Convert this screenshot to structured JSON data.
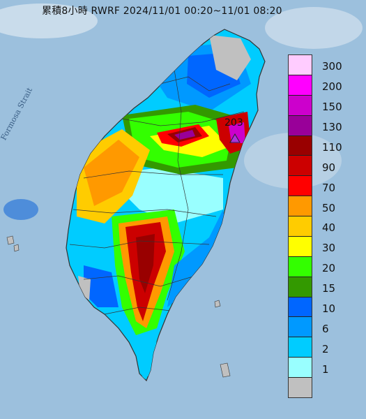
{
  "title": "累積8小時 RWRF 2024/11/01 00:20~11/01 08:20",
  "strait_label": "Formosa Strait",
  "max_label": "203",
  "legend": [
    {
      "label": "300",
      "color": "#ffccff"
    },
    {
      "label": "200",
      "color": "#ff00ff"
    },
    {
      "label": "150",
      "color": "#cc00cc"
    },
    {
      "label": "130",
      "color": "#990099"
    },
    {
      "label": "110",
      "color": "#990000"
    },
    {
      "label": "90",
      "color": "#cc0000"
    },
    {
      "label": "70",
      "color": "#ff0000"
    },
    {
      "label": "50",
      "color": "#ff9900"
    },
    {
      "label": "40",
      "color": "#ffcc00"
    },
    {
      "label": "30",
      "color": "#ffff00"
    },
    {
      "label": "20",
      "color": "#33ff00"
    },
    {
      "label": "15",
      "color": "#339900"
    },
    {
      "label": "10",
      "color": "#0066ff"
    },
    {
      "label": "6",
      "color": "#0099ff"
    },
    {
      "label": "2",
      "color": "#00ccff"
    },
    {
      "label": "1",
      "color": "#99ffff"
    },
    {
      "label": "",
      "color": "#c0c0c0"
    }
  ],
  "colors": {
    "sea": "#9cc0dd",
    "no_rain": "#c0c0c0",
    "marker": "#aa33dd"
  }
}
